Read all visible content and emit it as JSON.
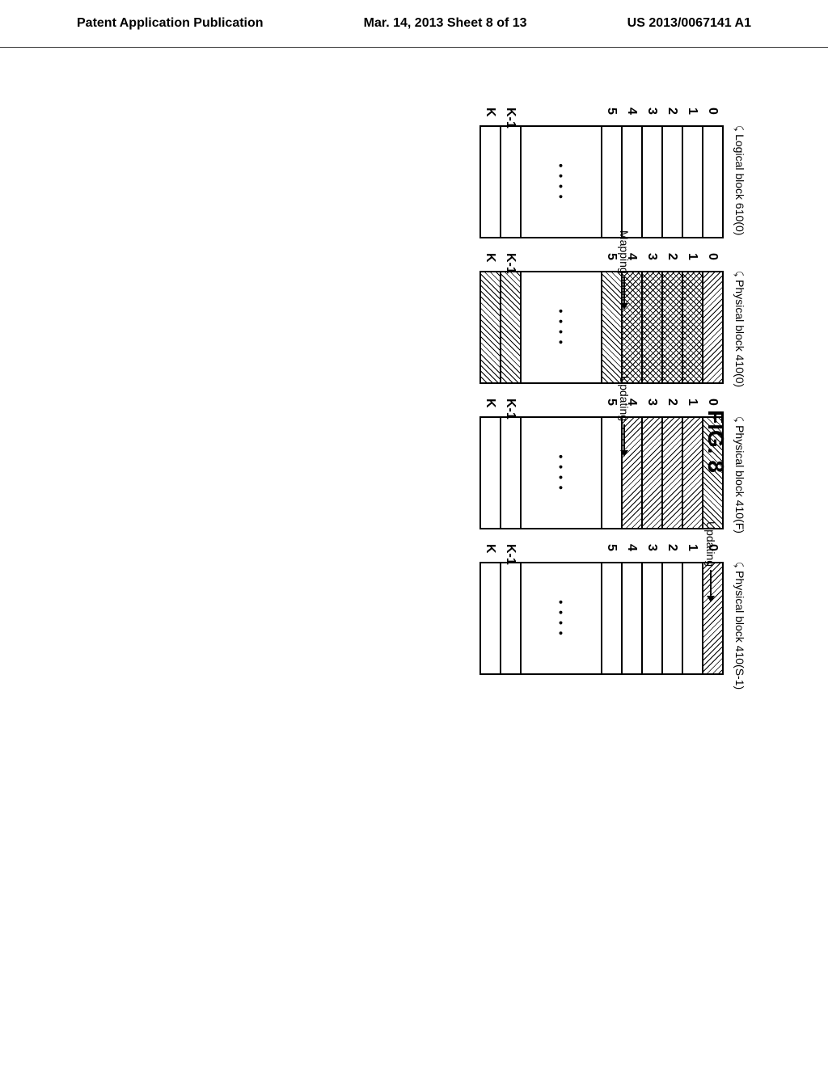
{
  "header": {
    "left": "Patent Application Publication",
    "center": "Mar. 14, 2013  Sheet 8 of 13",
    "right": "US 2013/0067141 A1"
  },
  "figure_label": "FIG. 8",
  "blocks": [
    {
      "label": "Logical block 610(0)",
      "pages": [
        {
          "num": "0",
          "pattern": ""
        },
        {
          "num": "1",
          "pattern": ""
        },
        {
          "num": "2",
          "pattern": ""
        },
        {
          "num": "3",
          "pattern": ""
        },
        {
          "num": "4",
          "pattern": ""
        },
        {
          "num": "5",
          "pattern": ""
        }
      ],
      "gap_dots": "• • • •",
      "last_pages": [
        {
          "num": "K-1",
          "pattern": ""
        },
        {
          "num": "K",
          "pattern": ""
        }
      ]
    },
    {
      "label": "Physical block 410(0)",
      "pages": [
        {
          "num": "0",
          "pattern": "hatch-fwd"
        },
        {
          "num": "1",
          "pattern": "hatch-cross"
        },
        {
          "num": "2",
          "pattern": "hatch-cross"
        },
        {
          "num": "3",
          "pattern": "hatch-cross"
        },
        {
          "num": "4",
          "pattern": "hatch-cross"
        },
        {
          "num": "5",
          "pattern": "hatch-back"
        }
      ],
      "gap_dots": "• • • •",
      "last_pages": [
        {
          "num": "K-1",
          "pattern": "hatch-back"
        },
        {
          "num": "K",
          "pattern": "hatch-back"
        }
      ]
    },
    {
      "label": "Physical block 410(F)",
      "pages": [
        {
          "num": "0",
          "pattern": "hatch-back"
        },
        {
          "num": "1",
          "pattern": "hatch-fwd"
        },
        {
          "num": "2",
          "pattern": "hatch-fwd"
        },
        {
          "num": "3",
          "pattern": "hatch-fwd"
        },
        {
          "num": "4",
          "pattern": "hatch-fwd"
        },
        {
          "num": "5",
          "pattern": ""
        }
      ],
      "gap_dots": "• • • •",
      "last_pages": [
        {
          "num": "K-1",
          "pattern": ""
        },
        {
          "num": "K",
          "pattern": ""
        }
      ]
    },
    {
      "label": "Physical block 410(S-1)",
      "pages": [
        {
          "num": "0",
          "pattern": "hatch-fwd"
        },
        {
          "num": "1",
          "pattern": ""
        },
        {
          "num": "2",
          "pattern": ""
        },
        {
          "num": "3",
          "pattern": ""
        },
        {
          "num": "4",
          "pattern": ""
        },
        {
          "num": "5",
          "pattern": ""
        }
      ],
      "gap_dots": "• • • •",
      "last_pages": [
        {
          "num": "K-1",
          "pattern": ""
        },
        {
          "num": "K",
          "pattern": ""
        }
      ]
    }
  ],
  "arrows": [
    {
      "label": "Mapping",
      "from_block": 0,
      "to_block": 1
    },
    {
      "label": "Updating",
      "from_block": 1,
      "to_block": 2
    },
    {
      "label": "Updating",
      "from_block": 2,
      "to_block": 3
    }
  ]
}
